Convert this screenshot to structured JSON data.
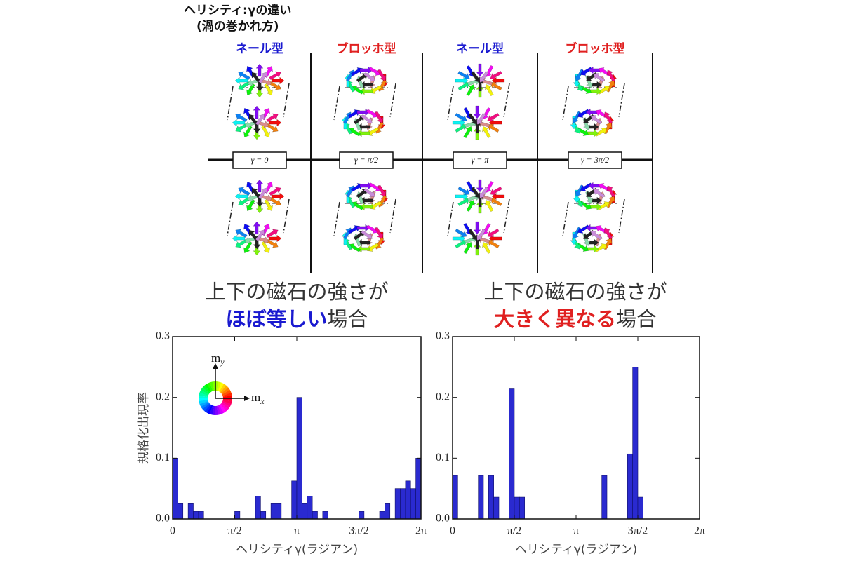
{
  "diagram": {
    "title": "ヘリシティ:γの違い",
    "subtitle": "(渦の巻かれ方)",
    "columns": [
      {
        "type": "ネール型",
        "color": "#1a1ad0",
        "gamma": "γ = 0"
      },
      {
        "type": "ブロッホ型",
        "color": "#e02020",
        "gamma": "γ = π/2"
      },
      {
        "type": "ネール型",
        "color": "#1a1ad0",
        "gamma": "γ = π"
      },
      {
        "type": "ブロッホ型",
        "color": "#e02020",
        "gamma": "γ = 3π/2"
      }
    ]
  },
  "chart_data": [
    {
      "type": "histogram",
      "title": "上下の磁石の強さが",
      "title_emphasis": "ほぼ等しい",
      "title_emphasis_color": "#1a1ad0",
      "title_suffix": "場合",
      "xlabel": "ヘリシティγ(ラジアン)",
      "ylabel": "規格化出現率",
      "color": "#2a2ad0",
      "inset": {
        "y_axis": {
          "main": "m",
          "sub": "y"
        },
        "x_axis": {
          "main": "m",
          "sub": "x"
        }
      },
      "bins": [
        0,
        0.1309,
        0.2618,
        0.3927,
        0.5236,
        0.6545,
        0.7854,
        0.9163,
        1.0472,
        1.1781,
        1.309,
        1.4399,
        1.5708,
        1.7017,
        1.8326,
        1.9635,
        2.0944,
        2.2253,
        2.3562,
        2.4871,
        2.618,
        2.7489,
        2.8798,
        3.0107,
        3.1416,
        3.2725,
        3.4034,
        3.5343,
        3.6652,
        3.7961,
        3.927,
        4.0579,
        4.1888,
        4.3197,
        4.4506,
        4.5815,
        4.7124,
        4.8433,
        4.9742,
        5.1051,
        5.236,
        5.3669,
        5.4978,
        5.6287,
        5.7596,
        5.8905,
        6.0214,
        6.1523,
        6.2832
      ],
      "values": [
        0.1,
        0.025,
        0,
        0.025,
        0.0125,
        0.0125,
        0,
        0,
        0,
        0,
        0,
        0,
        0.0125,
        0,
        0,
        0,
        0.0375,
        0.0125,
        0,
        0.025,
        0.025,
        0,
        0,
        0.0625,
        0.2,
        0.025,
        0.0375,
        0.0125,
        0,
        0.0125,
        0,
        0,
        0,
        0,
        0,
        0,
        0.0125,
        0,
        0,
        0,
        0.0125,
        0.025,
        0,
        0.05,
        0.05,
        0.0625,
        0.05,
        0.1
      ],
      "xlim": [
        0,
        6.2832
      ],
      "ylim": [
        0,
        0.3
      ],
      "xticks": [
        0,
        {
          "value": 1.5708,
          "label": "π/2"
        },
        {
          "value": 3.1416,
          "label": "π"
        },
        {
          "value": 4.7124,
          "label": "3π/2"
        },
        {
          "value": 6.2832,
          "label": "2π"
        }
      ],
      "yticks": [
        {
          "value": 0,
          "label": "0.0"
        },
        0.1,
        0.2,
        0.3
      ]
    },
    {
      "type": "histogram",
      "title": "上下の磁石の強さが",
      "title_emphasis": "大きく異なる",
      "title_emphasis_color": "#e02020",
      "title_suffix": "場合",
      "xlabel": "ヘリシティγ(ラジアン)",
      "color": "#2a2ad0",
      "bins": [
        0,
        0.1309,
        0.2618,
        0.3927,
        0.5236,
        0.6545,
        0.7854,
        0.9163,
        1.0472,
        1.1781,
        1.309,
        1.4399,
        1.5708,
        1.7017,
        1.8326,
        1.9635,
        2.0944,
        2.2253,
        2.3562,
        2.4871,
        2.618,
        2.7489,
        2.8798,
        3.0107,
        3.1416,
        3.2725,
        3.4034,
        3.5343,
        3.6652,
        3.7961,
        3.927,
        4.0579,
        4.1888,
        4.3197,
        4.4506,
        4.5815,
        4.7124,
        4.8433,
        4.9742,
        5.1051,
        5.236,
        5.3669,
        5.4978,
        5.6287,
        5.7596,
        5.8905,
        6.0214,
        6.1523,
        6.2832
      ],
      "values": [
        0.0714,
        0,
        0,
        0,
        0,
        0.0714,
        0,
        0.0714,
        0.0357,
        0,
        0,
        0.214,
        0.0357,
        0.0357,
        0,
        0,
        0,
        0,
        0,
        0,
        0,
        0,
        0,
        0,
        0,
        0,
        0,
        0,
        0,
        0.0714,
        0,
        0,
        0,
        0,
        0.107,
        0.25,
        0.0357,
        0,
        0,
        0,
        0,
        0,
        0,
        0,
        0,
        0,
        0,
        0
      ],
      "xlim": [
        0,
        6.2832
      ],
      "ylim": [
        0,
        0.3
      ],
      "xticks": [
        0,
        {
          "value": 1.5708,
          "label": "π/2"
        },
        {
          "value": 3.1416,
          "label": "π"
        },
        {
          "value": 4.7124,
          "label": "3π/2"
        },
        {
          "value": 6.2832,
          "label": "2π"
        }
      ],
      "yticks": [
        {
          "value": 0,
          "label": "0.0"
        },
        0.1,
        0.2,
        0.3
      ]
    }
  ]
}
